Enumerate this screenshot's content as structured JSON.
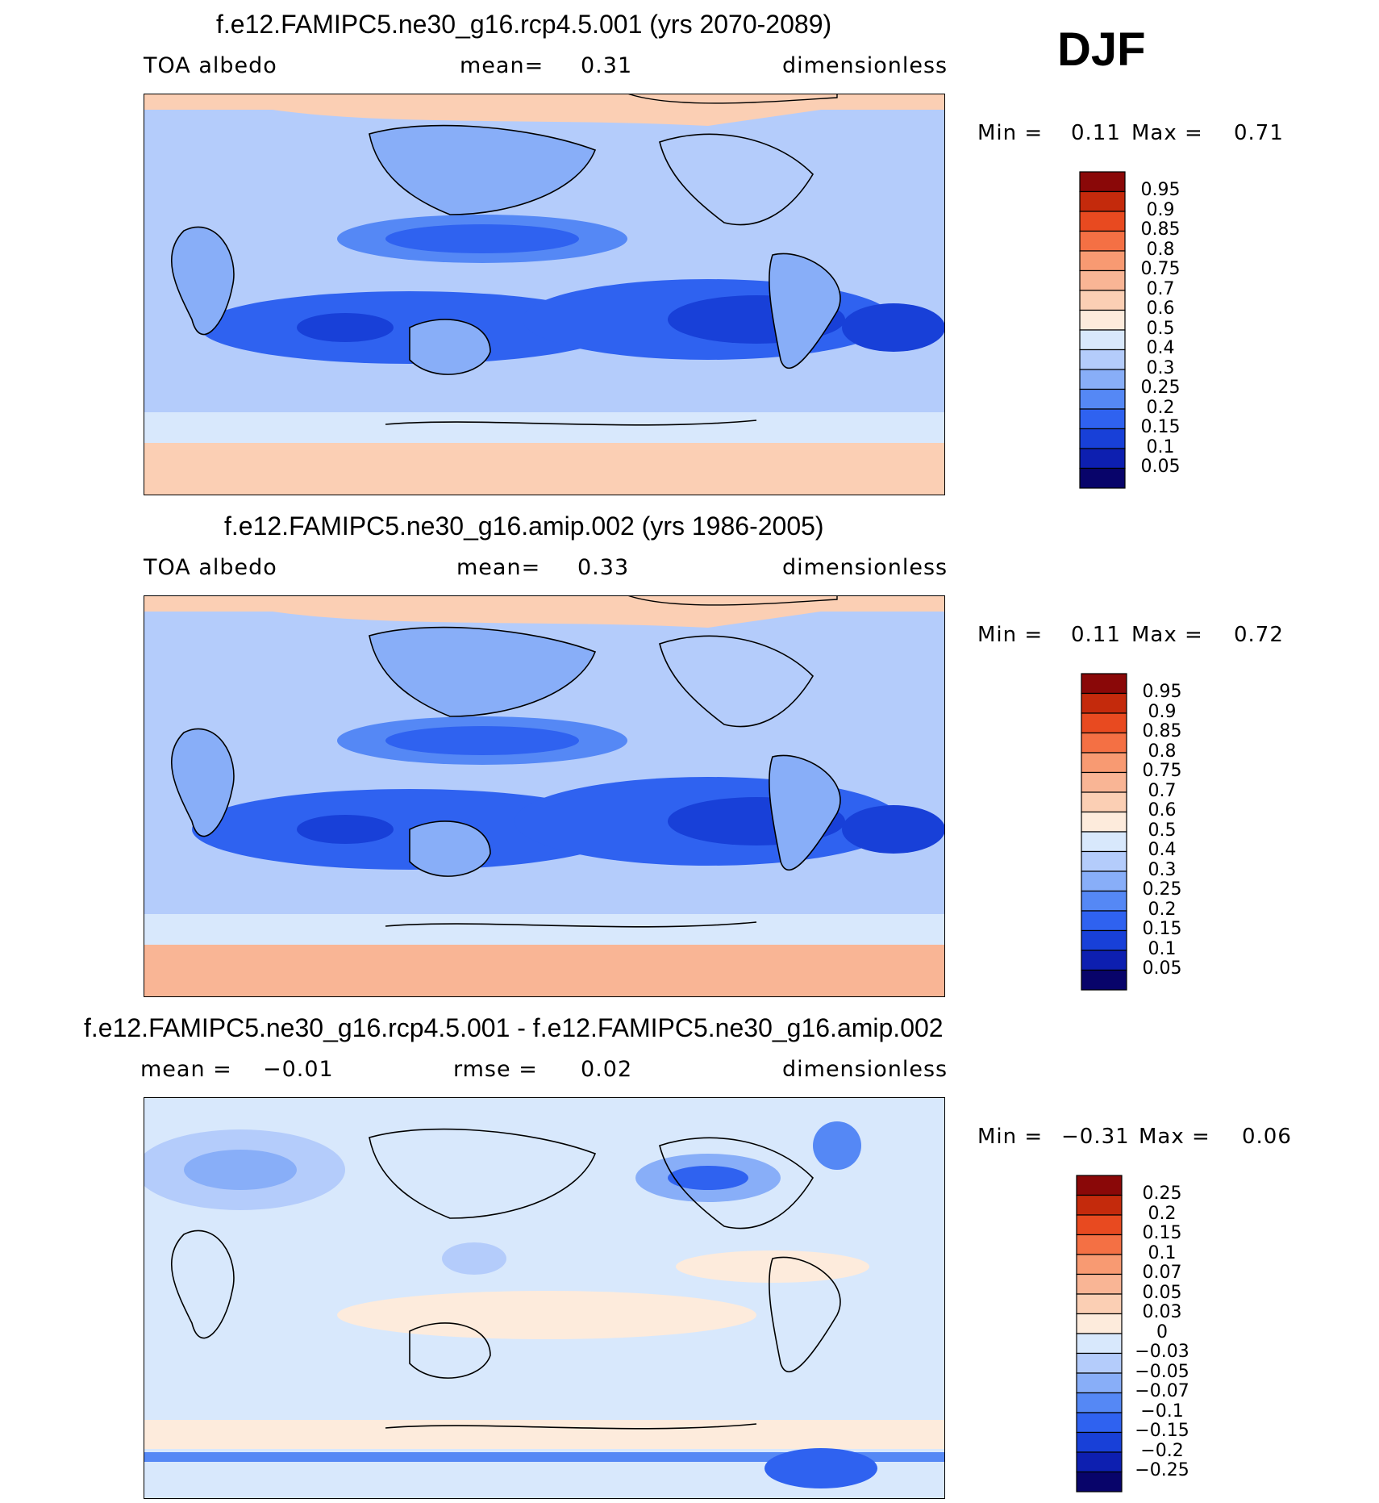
{
  "season": "DJF",
  "colors": {
    "absolute_palette": [
      "#08046a",
      "#0d1fb0",
      "#1840d8",
      "#2f62f0",
      "#5588f5",
      "#88aef8",
      "#b4ccfb",
      "#d8e8fc",
      "#fdebdc",
      "#fbcfb4",
      "#f9b595",
      "#f89a72",
      "#f47044",
      "#e84a20",
      "#c42a0c",
      "#8a0808"
    ],
    "difference_palette": [
      "#08046a",
      "#0d1fb0",
      "#1840d8",
      "#2f62f0",
      "#5588f5",
      "#88aef8",
      "#b4ccfb",
      "#d8e8fc",
      "#fdebdc",
      "#fbcfb4",
      "#f9b595",
      "#f89a72",
      "#f47044",
      "#e84a20",
      "#c42a0c",
      "#8a0808"
    ]
  },
  "panels": [
    {
      "title": "f.e12.FAMIPC5.ne30_g16.rcp4.5.001 (yrs 2070-2089)",
      "variable": "TOA  albedo",
      "stat_label": "mean=",
      "stat_value": "0.31",
      "units": "dimensionless",
      "min_label": "Min  =",
      "min_value": "0.11",
      "max_label": "Max  =",
      "max_value": "0.71",
      "colorbar_labels": [
        "0.95",
        "0.9",
        "0.85",
        "0.8",
        "0.75",
        "0.7",
        "0.6",
        "0.5",
        "0.4",
        "0.3",
        "0.25",
        "0.2",
        "0.15",
        "0.1",
        "0.05"
      ]
    },
    {
      "title": "f.e12.FAMIPC5.ne30_g16.amip.002 (yrs 1986-2005)",
      "variable": "TOA  albedo",
      "stat_label": "mean=",
      "stat_value": "0.33",
      "units": "dimensionless",
      "min_label": "Min  =",
      "min_value": "0.11",
      "max_label": "Max  =",
      "max_value": "0.72",
      "colorbar_labels": [
        "0.95",
        "0.9",
        "0.85",
        "0.8",
        "0.75",
        "0.7",
        "0.6",
        "0.5",
        "0.4",
        "0.3",
        "0.25",
        "0.2",
        "0.15",
        "0.1",
        "0.05"
      ]
    },
    {
      "title": "f.e12.FAMIPC5.ne30_g16.rcp4.5.001 - f.e12.FAMIPC5.ne30_g16.amip.002",
      "variable": "mean  =",
      "stat_value_left": "−0.01",
      "stat_label": "rmse  =",
      "stat_value": "0.02",
      "units": "dimensionless",
      "min_label": "Min  =",
      "min_value": "−0.31",
      "max_label": "Max  =",
      "max_value": "0.06",
      "colorbar_labels": [
        "0.25",
        "0.2",
        "0.15",
        "0.1",
        "0.07",
        "0.05",
        "0.03",
        "0",
        "−0.03",
        "−0.05",
        "−0.07",
        "−0.1",
        "−0.15",
        "−0.2",
        "−0.25"
      ]
    }
  ]
}
